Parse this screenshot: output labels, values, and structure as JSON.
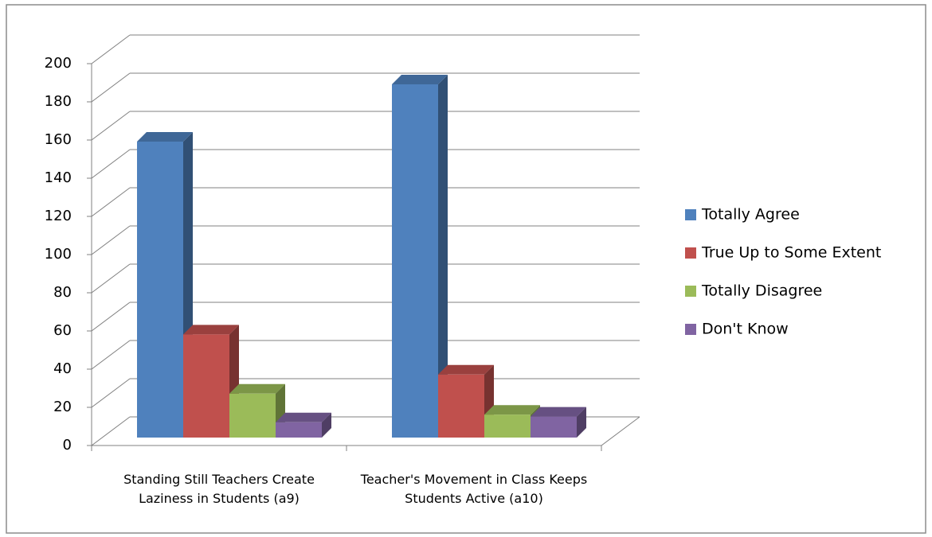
{
  "chart_data": {
    "type": "bar3d",
    "categories": [
      "Standing Still Teachers Create Laziness in Students (a9)",
      "Teacher's Movement in Class Keeps Students Active (a10)"
    ],
    "series": [
      {
        "name": "Totally Agree",
        "color": "#4f81bd",
        "values": [
          155,
          185
        ]
      },
      {
        "name": "True Up to Some Extent",
        "color": "#c0504d",
        "values": [
          54,
          33
        ]
      },
      {
        "name": "Totally Disagree",
        "color": "#9bbb59",
        "values": [
          23,
          12
        ]
      },
      {
        "name": "Don't Know",
        "color": "#8064a2",
        "values": [
          8,
          11
        ]
      }
    ],
    "ylim": [
      0,
      200
    ],
    "yticks": [
      0,
      20,
      40,
      60,
      80,
      100,
      120,
      140,
      160,
      180,
      200
    ],
    "grid": true,
    "legend": "right"
  }
}
